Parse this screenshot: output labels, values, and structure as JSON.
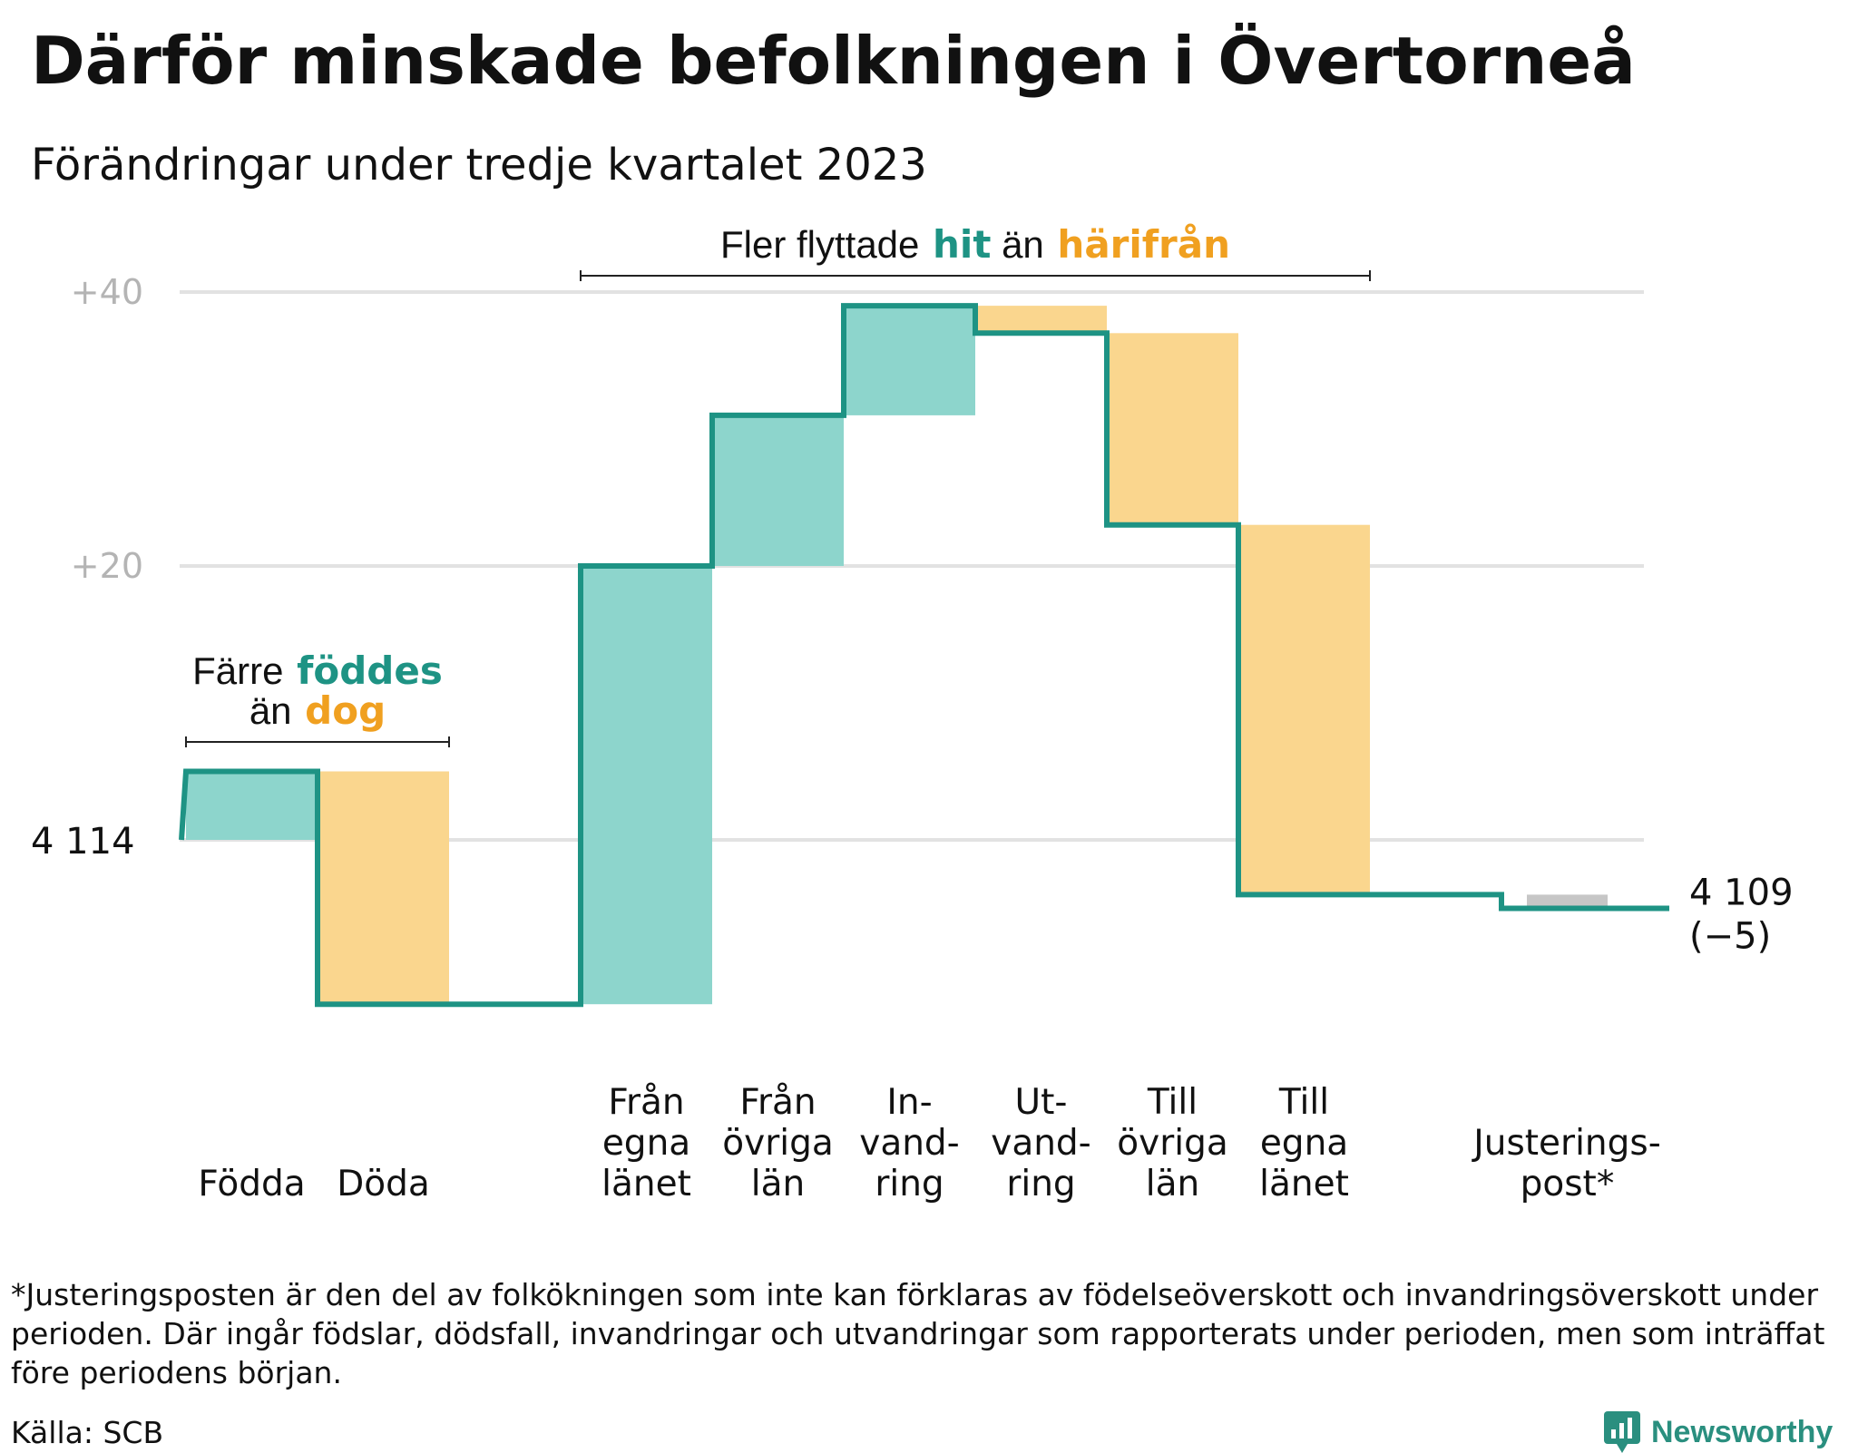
{
  "header": {
    "title": "Därför minskade befolkningen i Övertorneå",
    "subtitle": "Förändringar under tredje kvartalet 2023"
  },
  "chart_data": {
    "type": "waterfall",
    "baseline_label": "4 114",
    "start_value": 0,
    "y_axis": {
      "ylim": [
        -14,
        42
      ],
      "ticks": [
        {
          "value": 40,
          "label": "+40"
        },
        {
          "value": 20,
          "label": "+20"
        }
      ],
      "grid": true
    },
    "steps": [
      {
        "label_lines": [
          "Födda"
        ],
        "value": 5,
        "kind": "gain"
      },
      {
        "label_lines": [
          "Döda"
        ],
        "value": -17,
        "kind": "loss"
      },
      {
        "label_lines": [],
        "value": 0,
        "kind": "gap"
      },
      {
        "label_lines": [
          "Från",
          "egna",
          "länet"
        ],
        "value": 32,
        "kind": "gain"
      },
      {
        "label_lines": [
          "Från",
          "övriga",
          "län"
        ],
        "value": 11,
        "kind": "gain"
      },
      {
        "label_lines": [
          "In-",
          "vand-",
          "ring"
        ],
        "value": 8,
        "kind": "gain"
      },
      {
        "label_lines": [
          "Ut-",
          "vand-",
          "ring"
        ],
        "value": -2,
        "kind": "loss"
      },
      {
        "label_lines": [
          "Till",
          "övriga",
          "län"
        ],
        "value": -14,
        "kind": "loss"
      },
      {
        "label_lines": [
          "Till",
          "egna",
          "länet"
        ],
        "value": -27,
        "kind": "loss"
      },
      {
        "label_lines": [],
        "value": 0,
        "kind": "gap"
      },
      {
        "label_lines": [
          "Justerings-",
          "post*"
        ],
        "value": -1,
        "kind": "neutral"
      }
    ],
    "end_label": {
      "line1": "4 109",
      "line2": "(−5)"
    },
    "annotations": [
      {
        "from_step": 0,
        "to_step": 1,
        "parts": [
          {
            "line": 0,
            "text": "Färre",
            "style": "plain"
          },
          {
            "line": 0,
            "text": "föddes",
            "style": "gain"
          },
          {
            "line": 1,
            "text": "än",
            "style": "plain"
          },
          {
            "line": 1,
            "text": "dog",
            "style": "loss"
          }
        ]
      },
      {
        "from_step": 3,
        "to_step": 8,
        "parts": [
          {
            "line": 0,
            "text": "Fler flyttade",
            "style": "plain"
          },
          {
            "line": 0,
            "text": "hit",
            "style": "gain"
          },
          {
            "line": 0,
            "text": "än",
            "style": "plain"
          },
          {
            "line": 0,
            "text": "härifrån",
            "style": "loss"
          }
        ]
      }
    ],
    "colors": {
      "line": "#1e9384",
      "gain_fill": "#8dd5cc",
      "loss_fill": "#fad68e",
      "neutral_fill": "#c6c6c6",
      "gain_text": "#1e9384",
      "loss_text": "#f0a020",
      "grid": "#e2e2e2",
      "tick_text": "#b4b4b4"
    }
  },
  "footer": {
    "footnote": "*Justeringsposten är den del av folkökningen som inte kan förklaras av födelseöverskott och invandringsöverskott under perioden. Där ingår födslar, dödsfall, invandringar och utvandringar som rapporterats under perioden, men som inträffat före periodens början.",
    "source": "Källa: SCB",
    "brand": "Newsworthy",
    "brand_icon": "newsworthy-logo-icon"
  }
}
